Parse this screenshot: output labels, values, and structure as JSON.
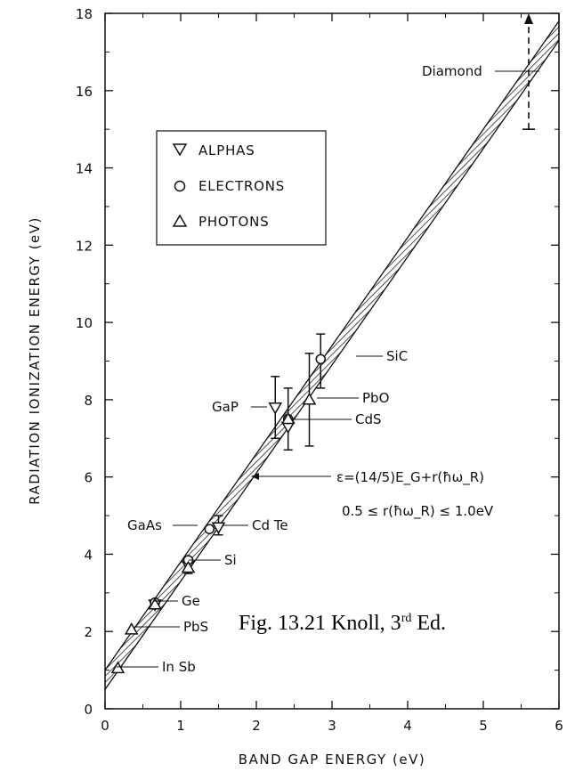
{
  "chart_data": {
    "type": "scatter",
    "title": "",
    "xlabel": "BAND GAP ENERGY (eV)",
    "ylabel": "RADIATION IONIZATION ENERGY (eV)",
    "xlim": [
      0,
      6
    ],
    "ylim": [
      0,
      18
    ],
    "x_ticks": [
      "0",
      "1",
      "2",
      "3",
      "4",
      "5",
      "6"
    ],
    "y_ticks": [
      "0",
      "2",
      "4",
      "6",
      "8",
      "10",
      "12",
      "14",
      "16",
      "18"
    ],
    "grid": false,
    "legend_position": "upper-left",
    "legend": [
      {
        "marker": "triangle-down",
        "label": "ALPHAS"
      },
      {
        "marker": "circle",
        "label": "ELECTRONS"
      },
      {
        "marker": "triangle-up",
        "label": "PHOTONS"
      }
    ],
    "band": {
      "formula": "ε=(14/5)E_G+r(ħω_R)",
      "slope": 2.8,
      "intercept_range": [
        0.5,
        1.0
      ],
      "constraint": "0.5 ≤ r(ħω_R) ≤ 1.0eV"
    },
    "series": [
      {
        "name": "ALPHAS",
        "marker": "triangle-down",
        "points": [
          {
            "material": "GaP",
            "x": 2.25,
            "y": 7.8
          },
          {
            "material": "CdS",
            "x": 2.42,
            "y": 7.3
          },
          {
            "material": "Cd Te",
            "x": 1.5,
            "y": 4.7
          },
          {
            "material": "Si",
            "x": 1.1,
            "y": 3.7
          },
          {
            "material": "Ge",
            "x": 0.66,
            "y": 2.7
          }
        ]
      },
      {
        "name": "ELECTRONS",
        "marker": "circle",
        "points": [
          {
            "material": "SiC",
            "x": 2.85,
            "y": 9.05
          },
          {
            "material": "CdS",
            "x": 2.42,
            "y": 7.5
          },
          {
            "material": "GaAs",
            "x": 1.38,
            "y": 4.65
          },
          {
            "material": "Si",
            "x": 1.1,
            "y": 3.85
          },
          {
            "material": "Ge",
            "x": 0.66,
            "y": 2.75
          }
        ]
      },
      {
        "name": "PHOTONS",
        "marker": "triangle-up",
        "points": [
          {
            "material": "PbO",
            "x": 2.7,
            "y": 8.0
          },
          {
            "material": "CdS",
            "x": 2.42,
            "y": 7.5
          },
          {
            "material": "Si",
            "x": 1.1,
            "y": 3.65
          },
          {
            "material": "Ge",
            "x": 0.66,
            "y": 2.7
          },
          {
            "material": "PbS",
            "x": 0.35,
            "y": 2.05
          },
          {
            "material": "In Sb",
            "x": 0.17,
            "y": 1.05
          }
        ]
      }
    ],
    "error_bars": [
      {
        "x": 2.85,
        "low": 8.3,
        "high": 9.7
      },
      {
        "x": 2.25,
        "low": 7.0,
        "high": 8.6
      },
      {
        "x": 2.42,
        "low": 6.7,
        "high": 8.3
      },
      {
        "x": 2.7,
        "low": 6.8,
        "high": 9.2
      },
      {
        "x": 1.5,
        "low": 4.5,
        "high": 5.0
      },
      {
        "x": 1.1,
        "low": 3.5,
        "high": 3.9
      }
    ],
    "diamond_range": {
      "material": "Diamond",
      "x": 5.6,
      "low": 15.0,
      "high": 18.0
    }
  },
  "legend_labels": {
    "alphas": "ALPHAS",
    "electrons": "ELECTRONS",
    "photons": "PHOTONS"
  },
  "annotations": {
    "diamond": "Diamond",
    "sic": "SiC",
    "pbo": "PbO",
    "cds": "CdS",
    "gap": "GaP",
    "gaas": "GaAs",
    "cdte": "Cd Te",
    "si": "Si",
    "ge": "Ge",
    "pbs": "PbS",
    "insb": "In Sb",
    "formula": "ε=(14/5)E_G+r(ħω_R)",
    "constraint": "0.5 ≤ r(ħω_R) ≤ 1.0eV"
  },
  "caption": {
    "prefix": "Fig. 13.21 Knoll, 3",
    "sup": "rd",
    "suffix": " Ed."
  }
}
